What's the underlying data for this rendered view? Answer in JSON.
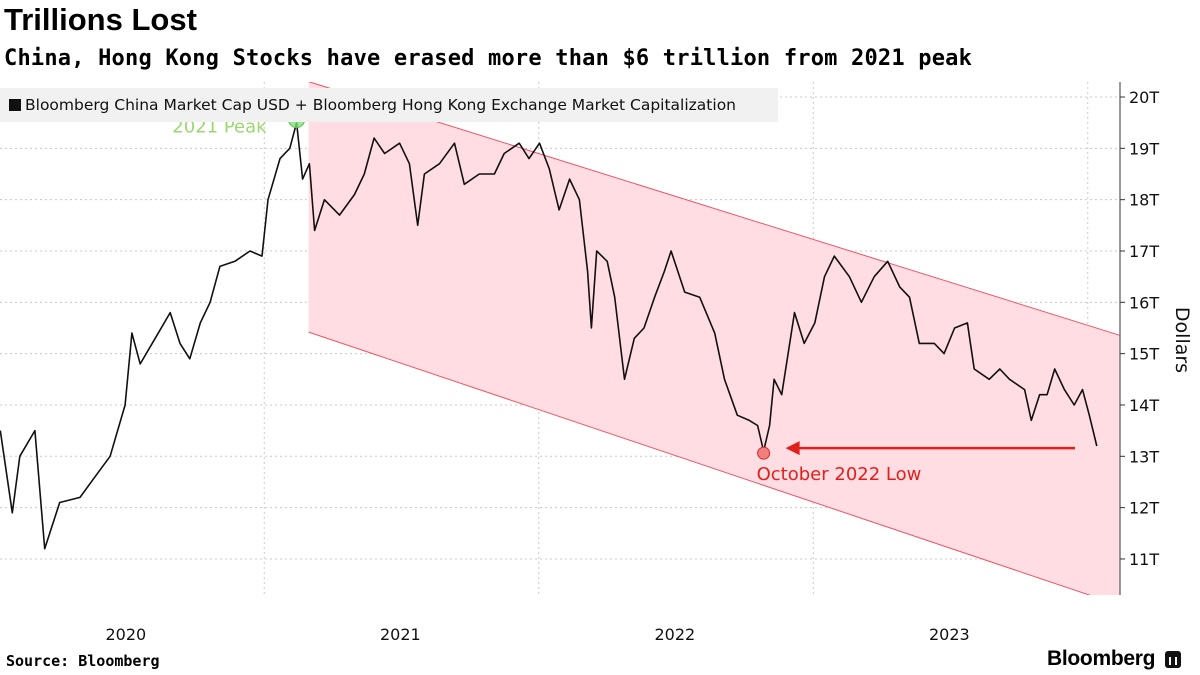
{
  "header": {
    "title": "Trillions Lost",
    "subtitle": "China, Hong Kong Stocks have erased more than $6 trillion from 2021 peak"
  },
  "footer": {
    "source": "Source: Bloomberg",
    "brand": "Bloomberg",
    "brand_icon": "bloomberg-chart-icon"
  },
  "chart_data": {
    "type": "line",
    "title": "Trillions Lost",
    "ylabel": "Dollars",
    "ylim": [
      10.3,
      20.3
    ],
    "y_ticks": [
      11,
      12,
      13,
      14,
      15,
      16,
      17,
      18,
      19,
      20
    ],
    "y_tick_labels": [
      "11T",
      "12T",
      "13T",
      "14T",
      "15T",
      "16T",
      "17T",
      "18T",
      "19T",
      "20T"
    ],
    "x_ticks": [
      "2020",
      "2021",
      "2022",
      "2023"
    ],
    "grid": true,
    "legend_position": "top-left",
    "colors": {
      "line": "#111111",
      "channel_fill": "#ffdde2",
      "channel_edge": "#ee5566",
      "peak": "#9bd770",
      "low": "#e0201b"
    },
    "series": [
      {
        "name": "Bloomberg China Market Cap USD + Bloomberg Hong Kong Exchange Market Capitalization",
        "points": [
          [
            "2020-01-16",
            13.5
          ],
          [
            "2020-02-01",
            11.9
          ],
          [
            "2020-02-11",
            13.0
          ],
          [
            "2020-03-02",
            13.5
          ],
          [
            "2020-03-15",
            11.2
          ],
          [
            "2020-04-04",
            12.1
          ],
          [
            "2020-05-01",
            12.2
          ],
          [
            "2020-05-21",
            12.6
          ],
          [
            "2020-06-10",
            13.0
          ],
          [
            "2020-06-30",
            14.0
          ],
          [
            "2020-07-09",
            15.4
          ],
          [
            "2020-07-20",
            14.8
          ],
          [
            "2020-08-09",
            15.3
          ],
          [
            "2020-08-29",
            15.8
          ],
          [
            "2020-09-11",
            15.2
          ],
          [
            "2020-09-24",
            14.9
          ],
          [
            "2020-10-08",
            15.6
          ],
          [
            "2020-10-21",
            16.0
          ],
          [
            "2020-11-03",
            16.7
          ],
          [
            "2020-11-23",
            16.8
          ],
          [
            "2020-12-13",
            17.0
          ],
          [
            "2020-12-29",
            16.9
          ],
          [
            "2021-01-06",
            18.0
          ],
          [
            "2021-01-22",
            18.8
          ],
          [
            "2021-02-04",
            19.0
          ],
          [
            "2021-02-13",
            19.5
          ],
          [
            "2021-02-21",
            18.4
          ],
          [
            "2021-03-02",
            18.7
          ],
          [
            "2021-03-09",
            17.4
          ],
          [
            "2021-03-22",
            18.0
          ],
          [
            "2021-04-11",
            17.7
          ],
          [
            "2021-05-01",
            18.1
          ],
          [
            "2021-05-14",
            18.5
          ],
          [
            "2021-05-27",
            19.2
          ],
          [
            "2021-06-10",
            18.9
          ],
          [
            "2021-06-30",
            19.1
          ],
          [
            "2021-07-13",
            18.7
          ],
          [
            "2021-07-24",
            17.5
          ],
          [
            "2021-08-02",
            18.5
          ],
          [
            "2021-08-22",
            18.7
          ],
          [
            "2021-09-11",
            19.1
          ],
          [
            "2021-09-24",
            18.3
          ],
          [
            "2021-10-14",
            18.5
          ],
          [
            "2021-11-03",
            18.5
          ],
          [
            "2021-11-16",
            18.9
          ],
          [
            "2021-12-06",
            19.1
          ],
          [
            "2021-12-19",
            18.8
          ],
          [
            "2022-01-02",
            19.1
          ],
          [
            "2022-01-15",
            18.6
          ],
          [
            "2022-01-28",
            17.8
          ],
          [
            "2022-02-11",
            18.4
          ],
          [
            "2022-02-24",
            18.0
          ],
          [
            "2022-03-07",
            16.6
          ],
          [
            "2022-03-12",
            15.5
          ],
          [
            "2022-03-19",
            17.0
          ],
          [
            "2022-04-02",
            16.8
          ],
          [
            "2022-04-12",
            16.1
          ],
          [
            "2022-04-25",
            14.5
          ],
          [
            "2022-05-08",
            15.3
          ],
          [
            "2022-05-21",
            15.5
          ],
          [
            "2022-06-04",
            16.1
          ],
          [
            "2022-06-17",
            16.6
          ],
          [
            "2022-06-26",
            17.0
          ],
          [
            "2022-07-14",
            16.2
          ],
          [
            "2022-08-03",
            16.1
          ],
          [
            "2022-08-23",
            15.4
          ],
          [
            "2022-09-05",
            14.5
          ],
          [
            "2022-09-22",
            13.8
          ],
          [
            "2022-10-08",
            13.7
          ],
          [
            "2022-10-19",
            13.6
          ],
          [
            "2022-10-27",
            13.1
          ],
          [
            "2022-11-04",
            13.6
          ],
          [
            "2022-11-10",
            14.5
          ],
          [
            "2022-11-20",
            14.2
          ],
          [
            "2022-12-07",
            15.8
          ],
          [
            "2022-12-20",
            15.2
          ],
          [
            "2023-01-03",
            15.6
          ],
          [
            "2023-01-16",
            16.5
          ],
          [
            "2023-01-29",
            16.9
          ],
          [
            "2023-02-18",
            16.5
          ],
          [
            "2023-03-06",
            16.0
          ],
          [
            "2023-03-23",
            16.5
          ],
          [
            "2023-04-10",
            16.8
          ],
          [
            "2023-04-26",
            16.3
          ],
          [
            "2023-05-09",
            16.1
          ],
          [
            "2023-05-22",
            15.2
          ],
          [
            "2023-06-11",
            15.2
          ],
          [
            "2023-06-24",
            15.0
          ],
          [
            "2023-07-08",
            15.5
          ],
          [
            "2023-07-25",
            15.6
          ],
          [
            "2023-08-03",
            14.7
          ],
          [
            "2023-08-23",
            14.5
          ],
          [
            "2023-09-06",
            14.7
          ],
          [
            "2023-09-19",
            14.5
          ],
          [
            "2023-10-09",
            14.3
          ],
          [
            "2023-10-18",
            13.7
          ],
          [
            "2023-10-29",
            14.2
          ],
          [
            "2023-11-08",
            14.2
          ],
          [
            "2023-11-18",
            14.7
          ],
          [
            "2023-12-01",
            14.3
          ],
          [
            "2023-12-14",
            14.0
          ],
          [
            "2023-12-25",
            14.3
          ],
          [
            "2024-01-03",
            13.8
          ],
          [
            "2024-01-13",
            13.2
          ]
        ]
      }
    ],
    "channel": {
      "start": "2021-03-01",
      "end": "2024-02-12",
      "upper": [
        20.3,
        15.36
      ],
      "lower": [
        15.42,
        10.1
      ]
    },
    "annotations": [
      {
        "label": "2021 Peak",
        "date": "2021-02-13",
        "value": 19.5
      },
      {
        "label": "October 2022 Low",
        "date": "2022-10-27",
        "value": 13.1
      }
    ]
  }
}
